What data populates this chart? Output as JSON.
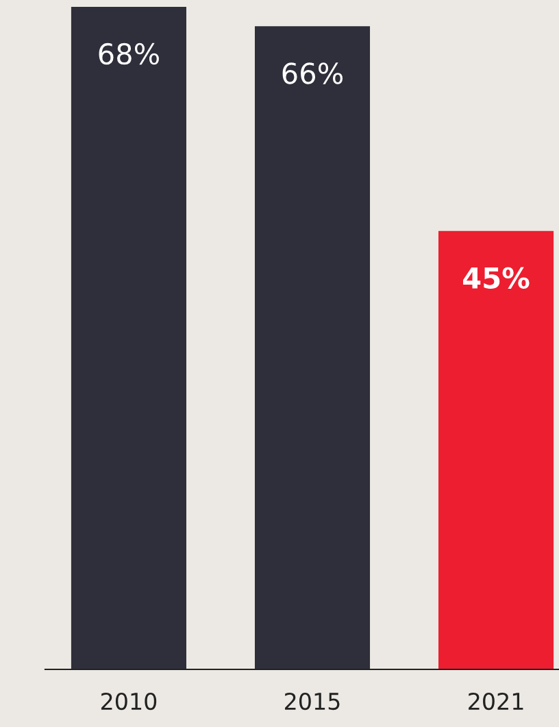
{
  "chart_data": {
    "type": "bar",
    "categories": [
      "2010",
      "2015",
      "2021"
    ],
    "values": [
      68,
      66,
      45
    ],
    "colors": [
      "#2f2f3b",
      "#2f2f3b",
      "#ec1e2f"
    ],
    "value_labels": [
      "68%",
      "66%",
      "45%"
    ],
    "ylim": [
      0,
      68.7
    ],
    "grid": false,
    "legend": false
  }
}
